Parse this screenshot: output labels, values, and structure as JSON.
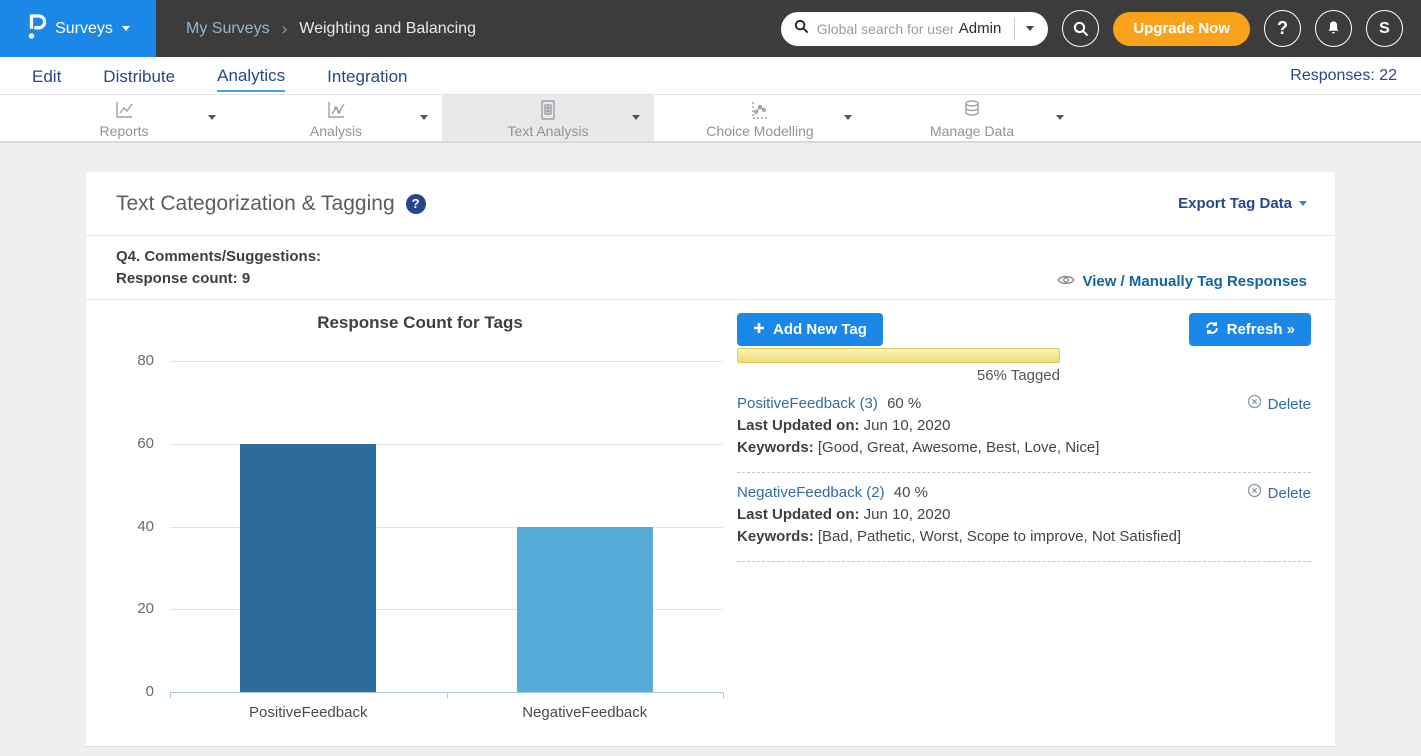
{
  "header": {
    "product": "Surveys",
    "breadcrumb": {
      "parent": "My Surveys",
      "separator": "›",
      "current": "Weighting and Balancing"
    },
    "search": {
      "placeholder": "Global search for user",
      "scope": "Admin"
    },
    "upgrade_label": "Upgrade Now",
    "help_label": "?",
    "avatar_initial": "S"
  },
  "nav": {
    "items": [
      "Edit",
      "Distribute",
      "Analytics",
      "Integration"
    ],
    "active": "Analytics",
    "responses_label": "Responses: 22"
  },
  "subnav": {
    "active": "Text Analysis",
    "tabs": [
      {
        "label": "Reports",
        "icon": "line-chart-icon"
      },
      {
        "label": "Analysis",
        "icon": "line-chart-dots-icon"
      },
      {
        "label": "Text Analysis",
        "icon": "document-table-icon"
      },
      {
        "label": "Choice Modelling",
        "icon": "scatter-chart-icon"
      },
      {
        "label": "Manage Data",
        "icon": "database-icon"
      }
    ]
  },
  "panel": {
    "title": "Text Categorization & Tagging",
    "help_icon": "?",
    "export_label": "Export Tag Data",
    "question_title": "Q4. Comments/Suggestions:",
    "response_count_label": "Response count: 9",
    "view_tag_link": "View / Manually Tag Responses"
  },
  "chart_data": {
    "type": "bar",
    "title": "Response Count for Tags",
    "categories": [
      "PositiveFeedback",
      "NegativeFeedback"
    ],
    "values": [
      60,
      40
    ],
    "bar_colors": [
      "#2c6b9b",
      "#57abd9"
    ],
    "xlabel": "",
    "ylabel": "",
    "ylim": [
      0,
      80
    ],
    "yticks": [
      80,
      60,
      40,
      20,
      0
    ],
    "grid": true,
    "legend": "none"
  },
  "tags_panel": {
    "add_button": "Add New Tag",
    "refresh_button": "Refresh »",
    "progress": {
      "percent": 56,
      "label": "56% Tagged"
    },
    "delete_label": "Delete",
    "tags": [
      {
        "name": "PositiveFeedback (3)",
        "percent": "60 %",
        "last_updated_label": "Last Updated on:",
        "last_updated": " Jun 10, 2020",
        "keywords_label": "Keywords:",
        "keywords": " [Good, Great, Awesome, Best, Love, Nice]"
      },
      {
        "name": "NegativeFeedback (2)",
        "percent": "40 %",
        "last_updated_label": "Last Updated on:",
        "last_updated": " Jun 10, 2020",
        "keywords_label": "Keywords:",
        "keywords": " [Bad, Pathetic, Worst, Scope to improve, Not Satisfied]"
      }
    ]
  }
}
